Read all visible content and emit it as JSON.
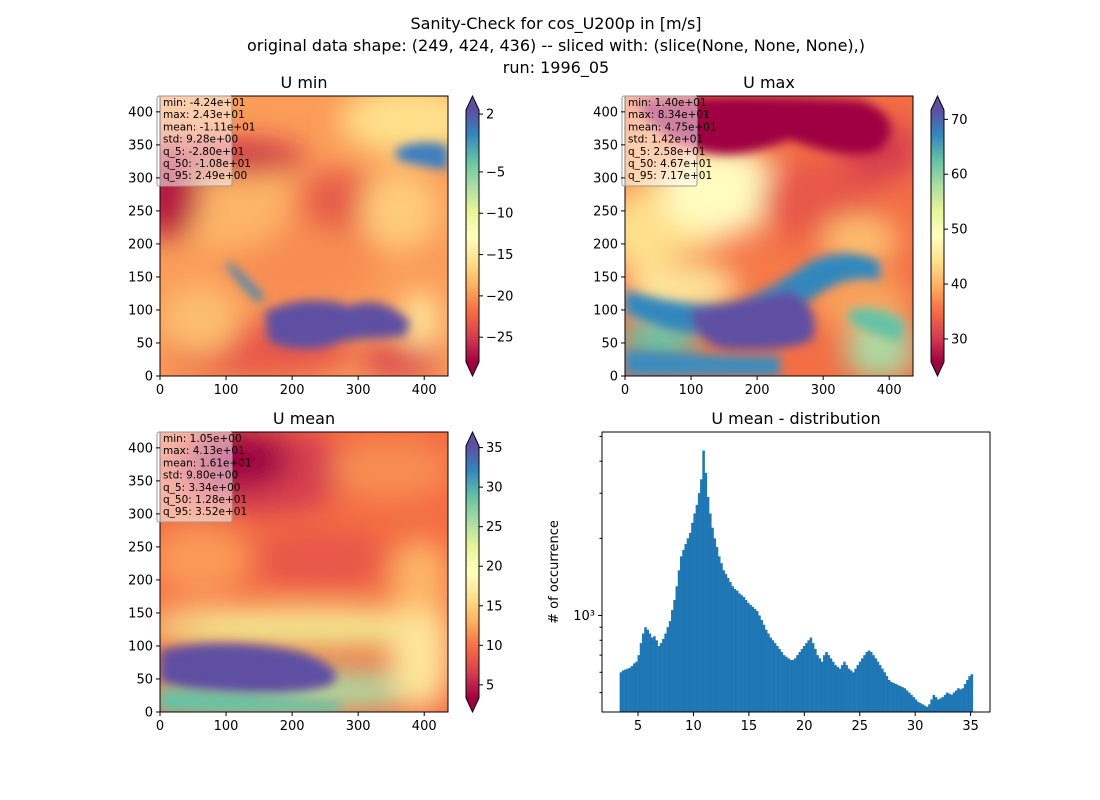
{
  "figure": {
    "title_lines": [
      "Sanity-Check for cos_U200p in [m/s]",
      "original data shape: (249, 424, 436) -- sliced with: (slice(None, None, None),)",
      "run: 1996_05"
    ]
  },
  "chart_data": [
    {
      "type": "heatmap",
      "title": "U min",
      "xlim": [
        0,
        436
      ],
      "ylim": [
        0,
        424
      ],
      "xticks": [
        0,
        100,
        200,
        300,
        400
      ],
      "yticks": [
        0,
        50,
        100,
        150,
        200,
        250,
        300,
        350,
        400
      ],
      "colormap": "Spectral",
      "colorbar": {
        "range": [
          -28.0,
          2.49
        ],
        "ticks": [
          2,
          -5,
          -10,
          -15,
          -20,
          -25
        ],
        "tick_labels": [
          "2",
          "−5",
          "−10",
          "−15",
          "−20",
          "−25"
        ],
        "extend": "both"
      },
      "stats": [
        "min: -4.24e+01",
        "max: 2.43e+01",
        "mean: -1.11e+01",
        "std: 9.28e+00",
        "q_5: -2.80e+01",
        "q_50: -1.08e+01",
        "q_95: 2.49e+00"
      ]
    },
    {
      "type": "heatmap",
      "title": "U max",
      "xlim": [
        0,
        436
      ],
      "ylim": [
        0,
        424
      ],
      "xticks": [
        0,
        100,
        200,
        300,
        400
      ],
      "yticks": [
        0,
        50,
        100,
        150,
        200,
        250,
        300,
        350,
        400
      ],
      "colormap": "Spectral",
      "colorbar": {
        "range": [
          25.8,
          71.7
        ],
        "ticks": [
          70,
          60,
          50,
          40,
          30
        ],
        "tick_labels": [
          "70",
          "60",
          "50",
          "40",
          "30"
        ],
        "extend": "both"
      },
      "stats": [
        "min: 1.40e+01",
        "max: 8.34e+01",
        "mean: 4.75e+01",
        "std: 1.42e+01",
        "q_5: 2.58e+01",
        "q_50: 4.67e+01",
        "q_95: 7.17e+01"
      ]
    },
    {
      "type": "heatmap",
      "title": "U mean",
      "xlim": [
        0,
        436
      ],
      "ylim": [
        0,
        424
      ],
      "xticks": [
        0,
        100,
        200,
        300,
        400
      ],
      "yticks": [
        0,
        50,
        100,
        150,
        200,
        250,
        300,
        350,
        400
      ],
      "colormap": "Spectral",
      "colorbar": {
        "range": [
          3.34,
          35.2
        ],
        "ticks": [
          35,
          30,
          25,
          20,
          15,
          10,
          5
        ],
        "tick_labels": [
          "35",
          "30",
          "25",
          "20",
          "15",
          "10",
          "5"
        ],
        "extend": "both"
      },
      "stats": [
        "min: 1.05e+00",
        "max: 4.13e+01",
        "mean: 1.61e+01",
        "std: 9.80e+00",
        "q_5: 3.34e+00",
        "q_50: 1.28e+01",
        "q_95: 3.52e+01"
      ]
    },
    {
      "type": "bar",
      "title": "U mean - distribution",
      "ylabel": "# of occurrence",
      "yscale": "log",
      "xlim": [
        1.75,
        36.75
      ],
      "ylim": [
        420,
        5200
      ],
      "xticks": [
        5,
        10,
        15,
        20,
        25,
        30,
        35
      ],
      "ytick_major": [
        1000
      ],
      "ytick_major_labels": [
        "10³"
      ],
      "color": "#1f77b4",
      "bin_start": 3.34,
      "bin_end": 35.2,
      "counts": [
        600,
        610,
        615,
        620,
        625,
        635,
        650,
        660,
        700,
        780,
        850,
        900,
        880,
        850,
        820,
        830,
        800,
        760,
        780,
        810,
        850,
        900,
        950,
        1050,
        1150,
        1300,
        1500,
        1700,
        1800,
        1900,
        2000,
        2100,
        2300,
        2500,
        2700,
        3000,
        3400,
        4400,
        3600,
        2900,
        2500,
        2200,
        2000,
        1850,
        1700,
        1600,
        1500,
        1450,
        1400,
        1350,
        1300,
        1270,
        1250,
        1220,
        1200,
        1180,
        1150,
        1120,
        1100,
        1080,
        1060,
        1040,
        1000,
        960,
        920,
        880,
        850,
        820,
        800,
        780,
        760,
        740,
        720,
        700,
        690,
        680,
        670,
        670,
        680,
        700,
        720,
        740,
        760,
        780,
        800,
        820,
        780,
        740,
        700,
        680,
        660,
        700,
        720,
        700,
        680,
        660,
        640,
        630,
        620,
        640,
        660,
        640,
        620,
        610,
        600,
        620,
        640,
        660,
        680,
        700,
        720,
        730,
        720,
        700,
        680,
        660,
        640,
        620,
        600,
        580,
        560,
        550,
        545,
        540,
        535,
        530,
        525,
        520,
        510,
        500,
        490,
        480,
        470,
        460,
        455,
        450,
        445,
        440,
        450,
        470,
        490,
        480,
        470,
        475,
        480,
        490,
        500,
        495,
        490,
        500,
        510,
        520,
        515,
        520,
        540,
        560,
        580,
        590
      ]
    }
  ]
}
